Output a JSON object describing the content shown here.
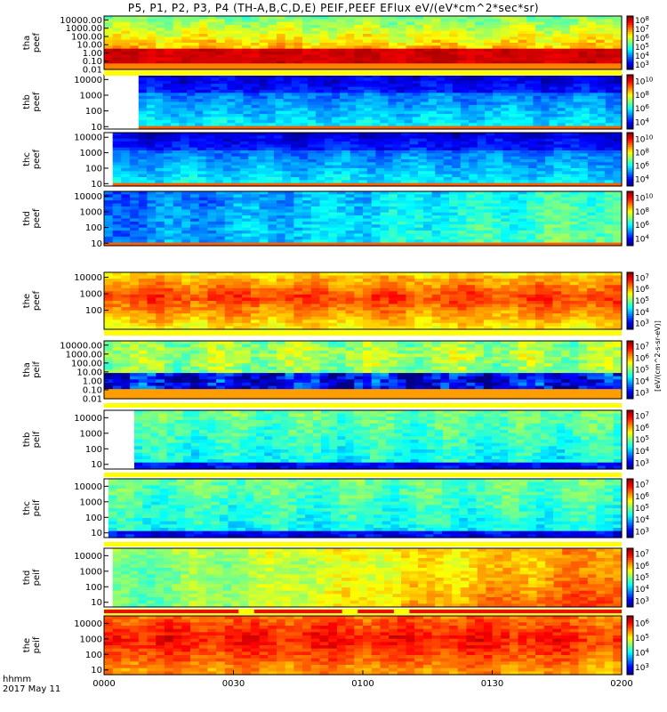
{
  "title": "P5, P1, P2, P3, P4 (TH-A,B,C,D,E) PEIF,PEEF EFlux eV/(eV*cm^2*sec*sr)",
  "colors": {
    "bad_flag": "#ffff00",
    "flag_red": "#ff0000"
  },
  "chart_data": {
    "type": "heatmap",
    "x_axis": {
      "label_lines": [
        "hhmm",
        "2017 May 11"
      ],
      "ticks": [
        "0000",
        "0030",
        "0100",
        "0130",
        "0200"
      ],
      "range": [
        "00:00",
        "02:00"
      ]
    },
    "colorbar_unit": "[eV/(cm^2-s-sr-eV)]",
    "panels": [
      {
        "name": "tha peef",
        "label_lines": [
          "tha",
          "peef"
        ],
        "y_scale": "log",
        "y_range": [
          0.01,
          30000
        ],
        "y_ticks": [
          "10000.00",
          "1000.00",
          "100.00",
          "10.00",
          "1.00",
          "0.10",
          "0.01"
        ],
        "colorbar_ticks": [
          "10^3",
          "10^4",
          "10^5",
          "10^6",
          "10^7",
          "10^8"
        ],
        "data_start": "00:00",
        "species": "electron"
      },
      {
        "name": "thb peef",
        "label_lines": [
          "thb",
          "peef"
        ],
        "y_scale": "log",
        "y_range": [
          7,
          20000
        ],
        "y_ticks": [
          "10000",
          "1000",
          "100",
          "10"
        ],
        "colorbar_ticks": [
          "10^4",
          "10^6",
          "10^8",
          "10^10"
        ],
        "data_start": "00:08",
        "species": "electron"
      },
      {
        "name": "thc peef",
        "label_lines": [
          "thc",
          "peef"
        ],
        "y_scale": "log",
        "y_range": [
          7,
          20000
        ],
        "y_ticks": [
          "10000",
          "1000",
          "100",
          "10"
        ],
        "colorbar_ticks": [
          "10^4",
          "10^6",
          "10^8",
          "10^10"
        ],
        "data_start": "00:02",
        "species": "electron"
      },
      {
        "name": "thd peef",
        "label_lines": [
          "thd",
          "peef"
        ],
        "y_scale": "log",
        "y_range": [
          7,
          20000
        ],
        "y_ticks": [
          "10000",
          "1000",
          "100",
          "10"
        ],
        "colorbar_ticks": [
          "10^4",
          "10^6",
          "10^8",
          "10^10"
        ],
        "data_start": "00:00",
        "species": "electron"
      },
      {
        "name": "the peef",
        "label_lines": [
          "the",
          "peef"
        ],
        "y_scale": "log",
        "y_range": [
          7,
          20000
        ],
        "y_ticks": [
          "10000",
          "1000",
          "100"
        ],
        "colorbar_ticks": [
          "10^3",
          "10^4",
          "10^5",
          "10^6",
          "10^7"
        ],
        "data_start": "00:00",
        "species": "electron"
      },
      {
        "name": "tha peif",
        "label_lines": [
          "tha",
          "peif"
        ],
        "y_scale": "log",
        "y_range": [
          0.01,
          30000
        ],
        "y_ticks": [
          "10000.00",
          "1000.00",
          "100.00",
          "10.00",
          "1.00",
          "0.10",
          "0.01"
        ],
        "colorbar_ticks": [
          "10^3",
          "10^4",
          "10^5",
          "10^6",
          "10^7"
        ],
        "data_start": "00:00",
        "species": "ion"
      },
      {
        "name": "thb peif",
        "label_lines": [
          "thb",
          "peif"
        ],
        "y_scale": "log",
        "y_range": [
          5,
          30000
        ],
        "y_ticks": [
          "10000",
          "1000",
          "100",
          "10"
        ],
        "colorbar_ticks": [
          "10^3",
          "10^4",
          "10^5",
          "10^6",
          "10^7"
        ],
        "data_start": "00:07",
        "species": "ion"
      },
      {
        "name": "thc peif",
        "label_lines": [
          "thc",
          "peif"
        ],
        "y_scale": "log",
        "y_range": [
          5,
          30000
        ],
        "y_ticks": [
          "10000",
          "1000",
          "100",
          "10"
        ],
        "colorbar_ticks": [
          "10^3",
          "10^4",
          "10^5",
          "10^6",
          "10^7"
        ],
        "data_start": "00:01",
        "species": "ion"
      },
      {
        "name": "thd peif",
        "label_lines": [
          "thd",
          "peif"
        ],
        "y_scale": "log",
        "y_range": [
          5,
          30000
        ],
        "y_ticks": [
          "10000",
          "1000",
          "100",
          "10"
        ],
        "colorbar_ticks": [
          "10^3",
          "10^4",
          "10^5",
          "10^6",
          "10^7"
        ],
        "data_start": "00:02",
        "species": "ion"
      },
      {
        "name": "the peif",
        "label_lines": [
          "the",
          "peif"
        ],
        "y_scale": "log",
        "y_range": [
          5,
          30000
        ],
        "y_ticks": [
          "10000",
          "1000",
          "100",
          "10"
        ],
        "colorbar_ticks": [
          "10^3",
          "10^4",
          "10^5",
          "10^6"
        ],
        "data_start": "00:00",
        "species": "ion"
      }
    ]
  }
}
